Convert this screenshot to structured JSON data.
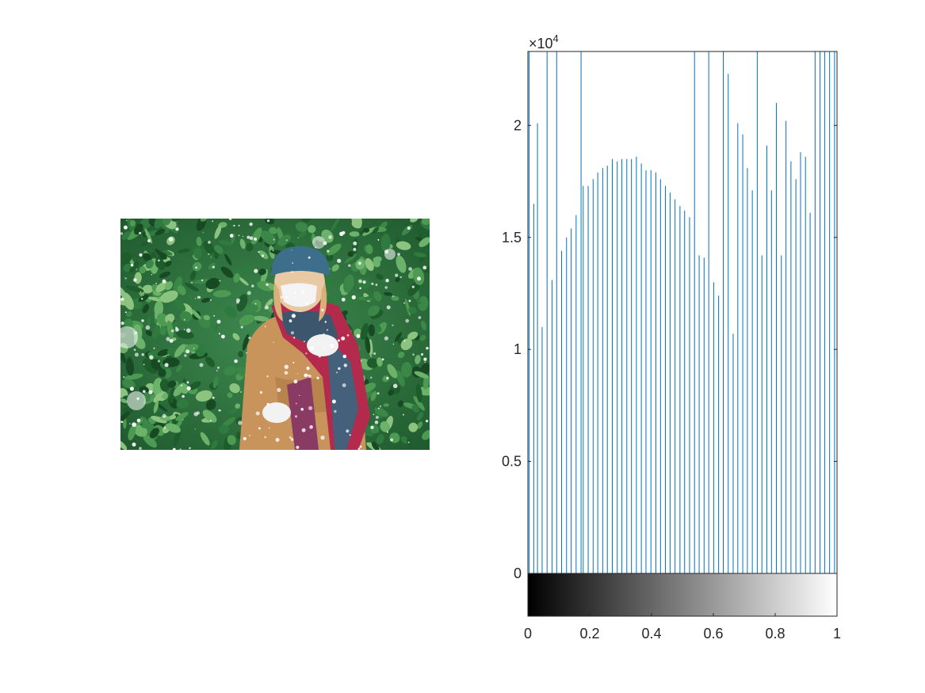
{
  "image_panel": {
    "description_icon": "photo-woman-in-snow"
  },
  "chart_data": {
    "type": "bar",
    "title": "",
    "xlabel": "",
    "ylabel": "",
    "xlim": [
      0,
      1
    ],
    "ylim": [
      0,
      23300
    ],
    "y_exponent_label": "×10",
    "y_exponent_power": "4",
    "x_tick_labels": [
      "0",
      "0.2",
      "0.4",
      "0.6",
      "0.8",
      "1"
    ],
    "x_ticks": [
      0,
      0.2,
      0.4,
      0.6,
      0.8,
      1
    ],
    "y_tick_labels": [
      "0",
      "0.5",
      "1",
      "1.5",
      "2"
    ],
    "y_ticks": [
      0,
      5000,
      10000,
      15000,
      20000
    ],
    "bar_color": "#0072BD",
    "colorbar": "grayscale 0 to 1",
    "x": [
      0.004,
      0.019,
      0.031,
      0.046,
      0.062,
      0.078,
      0.093,
      0.109,
      0.125,
      0.14,
      0.156,
      0.172,
      0.179,
      0.195,
      0.211,
      0.226,
      0.242,
      0.257,
      0.273,
      0.289,
      0.304,
      0.32,
      0.335,
      0.351,
      0.367,
      0.382,
      0.398,
      0.414,
      0.429,
      0.445,
      0.46,
      0.476,
      0.492,
      0.507,
      0.523,
      0.539,
      0.554,
      0.57,
      0.585,
      0.601,
      0.617,
      0.632,
      0.648,
      0.664,
      0.679,
      0.695,
      0.71,
      0.726,
      0.742,
      0.757,
      0.773,
      0.788,
      0.804,
      0.82,
      0.835,
      0.851,
      0.867,
      0.882,
      0.898,
      0.913,
      0.929,
      0.945,
      0.96,
      0.976,
      0.992
    ],
    "values": [
      23300,
      16500,
      20100,
      11000,
      23300,
      13100,
      23300,
      14400,
      15000,
      15400,
      16000,
      23300,
      17300,
      17300,
      17600,
      17900,
      18100,
      18200,
      18500,
      18400,
      18500,
      18500,
      18500,
      18600,
      18300,
      18000,
      18000,
      17900,
      17600,
      17300,
      17000,
      16700,
      16400,
      16200,
      15900,
      23300,
      14200,
      14100,
      23300,
      13000,
      12400,
      23300,
      22300,
      10700,
      20100,
      19600,
      18100,
      17100,
      23300,
      14200,
      19100,
      17100,
      21000,
      14200,
      20200,
      18400,
      17600,
      18800,
      18600,
      16100,
      23300,
      23300,
      23300,
      23300,
      23300
    ]
  }
}
